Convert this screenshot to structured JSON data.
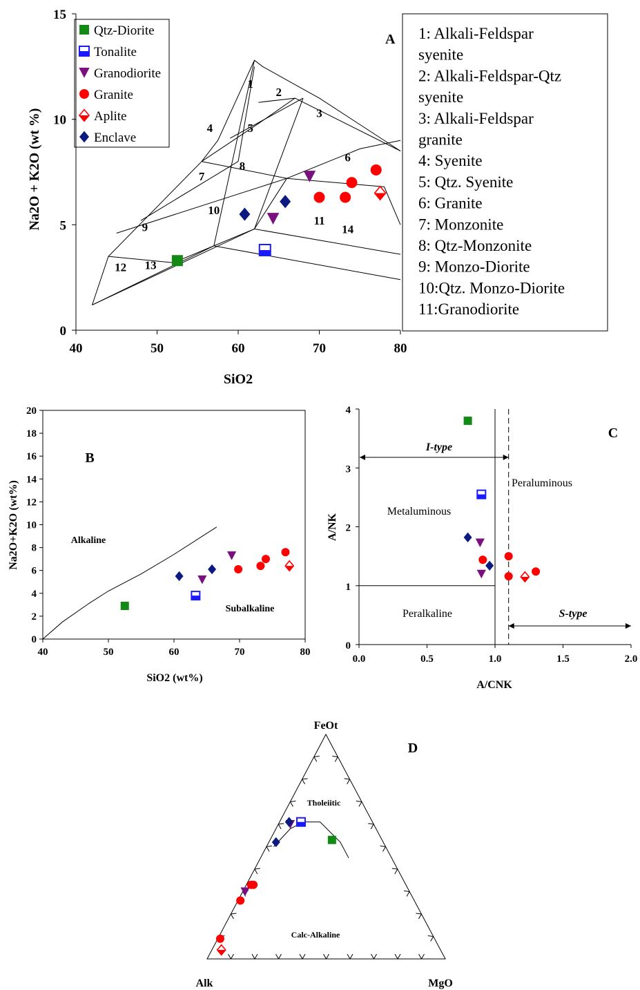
{
  "chart_data": [
    {
      "id": "A",
      "type": "scatter",
      "panel_label": "A",
      "xlabel": "SiO2",
      "ylabel": "Na2O + K2O (wt %)",
      "xlim": [
        40,
        80
      ],
      "ylim": [
        0,
        15
      ],
      "xticks": [
        "40",
        "50",
        "60",
        "70",
        "80"
      ],
      "yticks": [
        "0",
        "5",
        "10",
        "15"
      ],
      "legend_position": "top-left",
      "field_numbers": [
        "1",
        "2",
        "3",
        "4",
        "5",
        "6",
        "7",
        "8",
        "9",
        "10",
        "11",
        "12",
        "13",
        "14"
      ],
      "field_legend": [
        "1: Alkali-Feldspar syenite",
        "2: Alkali-Feldspar-Qtz syenite",
        "3: Alkali-Feldspar granite",
        "4: Syenite",
        "5: Qtz. Syenite",
        "6: Granite",
        "7: Monzonite",
        "8: Qtz-Monzonite",
        "9: Monzo-Diorite",
        "10:Qtz. Monzo-Diorite",
        "11:Granodiorite"
      ],
      "series": [
        {
          "name": "Qtz-Diorite",
          "marker": "square",
          "color": "#138a13",
          "points": [
            [
              52.5,
              3.3
            ]
          ]
        },
        {
          "name": "Tonalite",
          "marker": "half-square",
          "color": "#1a1aff",
          "points": [
            [
              63.3,
              3.8
            ]
          ]
        },
        {
          "name": "Granodiorite",
          "marker": "triangle-down",
          "color": "#7a1080",
          "points": [
            [
              64.3,
              5.3
            ],
            [
              68.8,
              7.3
            ]
          ]
        },
        {
          "name": "Granite",
          "marker": "circle",
          "color": "#ff0000",
          "points": [
            [
              70.0,
              6.3
            ],
            [
              73.2,
              6.3
            ],
            [
              74.0,
              7.0
            ],
            [
              77.0,
              7.6
            ]
          ]
        },
        {
          "name": "Aplite",
          "marker": "half-diamond",
          "color": "#ff0000",
          "points": [
            [
              77.5,
              6.5
            ]
          ]
        },
        {
          "name": "Enclave",
          "marker": "diamond",
          "color": "#0d1a80",
          "points": [
            [
              60.8,
              5.5
            ],
            [
              65.8,
              6.1
            ]
          ]
        }
      ]
    },
    {
      "id": "B",
      "type": "scatter",
      "panel_label": "B",
      "xlabel": "SiO2 (wt%)",
      "ylabel": "Na2O+K2O (wt%)",
      "xlim": [
        40,
        80
      ],
      "ylim": [
        0,
        20
      ],
      "xticks": [
        "40",
        "50",
        "60",
        "70",
        "80"
      ],
      "yticks": [
        "0",
        "2",
        "4",
        "6",
        "8",
        "10",
        "12",
        "14",
        "16",
        "18",
        "20"
      ],
      "field_labels": [
        "Alkaline",
        "Subalkaline"
      ],
      "divider_curve": [
        [
          40,
          0
        ],
        [
          43,
          1.5
        ],
        [
          47,
          3.1
        ],
        [
          50,
          4.2
        ],
        [
          55,
          5.7
        ],
        [
          60,
          7.4
        ],
        [
          66.5,
          9.8
        ]
      ],
      "series": [
        {
          "name": "Qtz-Diorite",
          "marker": "square",
          "color": "#138a13",
          "points": [
            [
              52.5,
              2.9
            ]
          ]
        },
        {
          "name": "Tonalite",
          "marker": "half-square",
          "color": "#1a1aff",
          "points": [
            [
              63.3,
              3.8
            ]
          ]
        },
        {
          "name": "Granodiorite",
          "marker": "triangle-down",
          "color": "#7a1080",
          "points": [
            [
              64.3,
              5.2
            ],
            [
              68.8,
              7.3
            ]
          ]
        },
        {
          "name": "Granite",
          "marker": "circle",
          "color": "#ff0000",
          "points": [
            [
              69.8,
              6.1
            ],
            [
              73.2,
              6.4
            ],
            [
              74.0,
              7.0
            ],
            [
              77.0,
              7.6
            ]
          ]
        },
        {
          "name": "Aplite",
          "marker": "half-diamond",
          "color": "#ff0000",
          "points": [
            [
              77.6,
              6.4
            ]
          ]
        },
        {
          "name": "Enclave",
          "marker": "diamond",
          "color": "#0d1a80",
          "points": [
            [
              60.8,
              5.5
            ],
            [
              65.8,
              6.1
            ]
          ]
        }
      ]
    },
    {
      "id": "C",
      "type": "scatter",
      "panel_label": "C",
      "xlabel": "A/CNK",
      "ylabel": "A/NK",
      "xlim": [
        0,
        2
      ],
      "ylim": [
        0,
        4
      ],
      "xticks": [
        "0.0",
        "0.5",
        "1.0",
        "1.5",
        "2.0"
      ],
      "yticks": [
        "0",
        "1",
        "2",
        "3",
        "4"
      ],
      "field_labels": [
        "Metaluminous",
        "Peraluminous",
        "Peralkaline"
      ],
      "type_labels": [
        "I-type",
        "S-type"
      ],
      "divider_x": 1.0,
      "divider_y": 1.0,
      "dashed_x": 1.1,
      "series": [
        {
          "name": "Qtz-Diorite",
          "marker": "square",
          "color": "#138a13",
          "points": [
            [
              0.8,
              3.8
            ]
          ]
        },
        {
          "name": "Tonalite",
          "marker": "half-square",
          "color": "#1a1aff",
          "points": [
            [
              0.9,
              2.55
            ]
          ]
        },
        {
          "name": "Granodiorite",
          "marker": "triangle-down",
          "color": "#7a1080",
          "points": [
            [
              0.89,
              1.73
            ],
            [
              0.9,
              1.2
            ]
          ]
        },
        {
          "name": "Granite",
          "marker": "circle",
          "color": "#ff0000",
          "points": [
            [
              0.91,
              1.44
            ],
            [
              1.1,
              1.5
            ],
            [
              1.1,
              1.16
            ],
            [
              1.3,
              1.24
            ]
          ]
        },
        {
          "name": "Aplite",
          "marker": "half-diamond",
          "color": "#ff0000",
          "points": [
            [
              1.22,
              1.15
            ]
          ]
        },
        {
          "name": "Enclave",
          "marker": "diamond",
          "color": "#0d1a80",
          "points": [
            [
              0.8,
              1.82
            ],
            [
              0.96,
              1.34
            ]
          ]
        }
      ]
    },
    {
      "id": "D",
      "type": "ternary",
      "panel_label": "D",
      "vertices": {
        "top": "FeOt",
        "left": "Alk",
        "right": "MgO"
      },
      "field_labels": [
        "Tholeiitic",
        "Calc-Alkaline"
      ],
      "divider_curve_abc": [
        [
          0.5,
          0.47,
          0.03
        ],
        [
          0.58,
          0.36,
          0.06
        ],
        [
          0.61,
          0.29,
          0.1
        ],
        [
          0.61,
          0.22,
          0.17
        ],
        [
          0.52,
          0.18,
          0.3
        ],
        [
          0.45,
          0.18,
          0.37
        ]
      ],
      "series": [
        {
          "name": "Qtz-Diorite",
          "marker": "square",
          "color": "#138a13",
          "points": [
            [
              0.53,
              0.21,
              0.26
            ]
          ]
        },
        {
          "name": "Tonalite",
          "marker": "half-square",
          "color": "#1a1aff",
          "points": [
            [
              0.61,
              0.3,
              0.09
            ]
          ]
        },
        {
          "name": "Granodiorite",
          "marker": "triangle-down",
          "color": "#7a1080",
          "points": [
            [
              0.6,
              0.35,
              0.05
            ],
            [
              0.3,
              0.69,
              0.01
            ]
          ]
        },
        {
          "name": "Granite",
          "marker": "circle",
          "color": "#ff0000",
          "points": [
            [
              0.33,
              0.64,
              0.03
            ],
            [
              0.33,
              0.65,
              0.02
            ],
            [
              0.26,
              0.73,
              0.01
            ],
            [
              0.09,
              0.9,
              0.01
            ]
          ]
        },
        {
          "name": "Aplite",
          "marker": "half-diamond",
          "color": "#ff0000",
          "points": [
            [
              0.04,
              0.92,
              0.04
            ]
          ]
        },
        {
          "name": "Enclave",
          "marker": "diamond",
          "color": "#0d1a80",
          "points": [
            [
              0.61,
              0.35,
              0.04
            ],
            [
              0.52,
              0.45,
              0.03
            ]
          ]
        }
      ]
    }
  ]
}
